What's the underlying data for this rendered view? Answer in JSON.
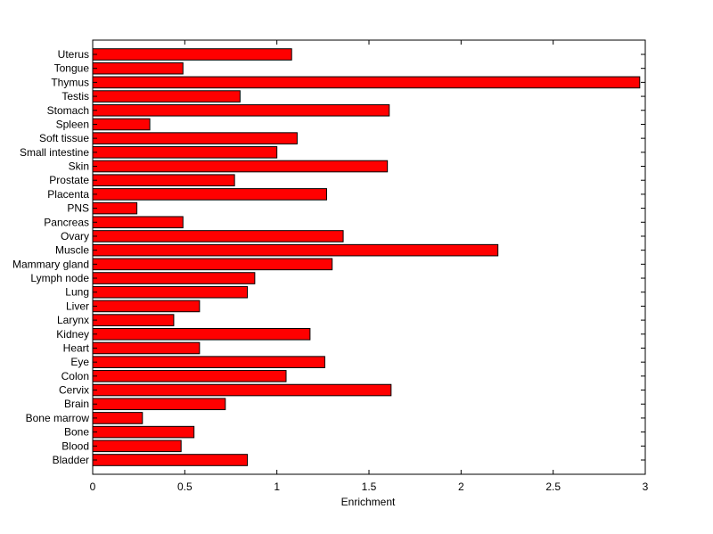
{
  "chart_data": {
    "type": "bar",
    "orientation": "horizontal",
    "categories": [
      "Uterus",
      "Tongue",
      "Thymus",
      "Testis",
      "Stomach",
      "Spleen",
      "Soft tissue",
      "Small intestine",
      "Skin",
      "Prostate",
      "Placenta",
      "PNS",
      "Pancreas",
      "Ovary",
      "Muscle",
      "Mammary gland",
      "Lymph node",
      "Lung",
      "Liver",
      "Larynx",
      "Kidney",
      "Heart",
      "Eye",
      "Colon",
      "Cervix",
      "Brain",
      "Bone marrow",
      "Bone",
      "Blood",
      "Bladder"
    ],
    "values": [
      1.08,
      0.49,
      2.97,
      0.8,
      1.61,
      0.31,
      1.11,
      1.0,
      1.6,
      0.77,
      1.27,
      0.24,
      0.49,
      1.36,
      2.2,
      1.3,
      0.88,
      0.84,
      0.58,
      0.44,
      1.18,
      0.58,
      1.26,
      1.05,
      1.62,
      0.72,
      0.27,
      0.55,
      0.48,
      0.84
    ],
    "xlabel": "Enrichment",
    "ylabel": "",
    "title": "",
    "xlim": [
      0,
      3
    ],
    "xticks": [
      "0",
      "0.5",
      "1",
      "1.5",
      "2",
      "2.5",
      "3"
    ],
    "grid": false,
    "legend": "none",
    "bar_color": "#ff0000",
    "edge_color": "#000000"
  }
}
